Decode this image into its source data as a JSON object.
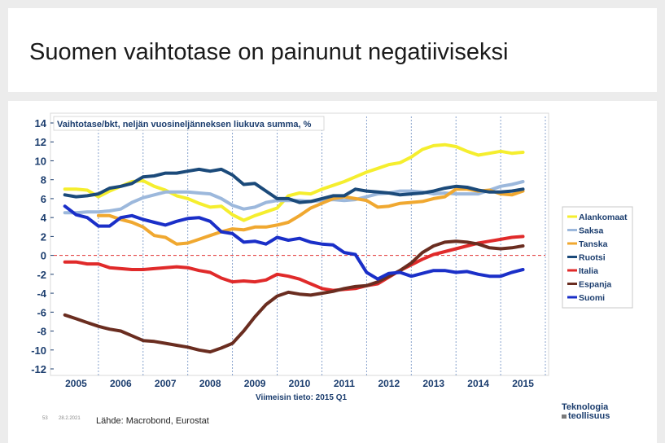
{
  "slide": {
    "title": "Suomen vaihtotase on painunut negatiiviseksi",
    "page_number": "53",
    "date": "28.2.2021",
    "source": "Lähde: Macrobond, Eurostat",
    "logo_line1": "Teknologia",
    "logo_line2": "teollisuus"
  },
  "chart_data": {
    "type": "line",
    "title": "Vaihtotase/bkt, neljän vuosineljänneksen liukuva summa, %",
    "subtitle": "Viimeisin tieto: 2015 Q1",
    "ylim": [
      -12,
      14
    ],
    "yticks": [
      "14",
      "12",
      "10",
      "8",
      "6",
      "4",
      "2",
      "0",
      "-2",
      "-4",
      "-6",
      "-8",
      "-10",
      "-12"
    ],
    "xlim": [
      2004.5,
      2015.5
    ],
    "xticks": [
      "2005",
      "2006",
      "2007",
      "2008",
      "2009",
      "2010",
      "2011",
      "2012",
      "2013",
      "2014",
      "2015"
    ],
    "series": [
      {
        "name": "Alankomaat",
        "color": "#f5ee2e",
        "width": 4,
        "x": [
          2004.75,
          2005.0,
          2005.25,
          2005.5,
          2005.75,
          2006.0,
          2006.25,
          2006.5,
          2006.75,
          2007.0,
          2007.25,
          2007.5,
          2007.75,
          2008.0,
          2008.25,
          2008.5,
          2008.75,
          2009.0,
          2009.25,
          2009.5,
          2009.75,
          2010.0,
          2010.25,
          2010.5,
          2010.75,
          2011.0,
          2011.25,
          2011.5,
          2011.75,
          2012.0,
          2012.25,
          2012.5,
          2012.75,
          2013.0,
          2013.25,
          2013.5,
          2013.75,
          2014.0,
          2014.25,
          2014.5,
          2014.75,
          2015.0
        ],
        "y": [
          7.0,
          7.0,
          6.9,
          6.2,
          6.8,
          7.3,
          7.8,
          7.9,
          7.3,
          6.9,
          6.3,
          6.0,
          5.5,
          5.1,
          5.2,
          4.3,
          3.7,
          4.2,
          4.6,
          5.0,
          6.3,
          6.6,
          6.5,
          7.0,
          7.4,
          7.8,
          8.3,
          8.8,
          9.2,
          9.6,
          9.8,
          10.4,
          11.2,
          11.6,
          11.7,
          11.5,
          11.0,
          10.6,
          10.8,
          11.0,
          10.8,
          10.9
        ]
      },
      {
        "name": "Saksa",
        "color": "#9cb8dc",
        "width": 4,
        "x": [
          2004.75,
          2005.0,
          2005.25,
          2005.5,
          2005.75,
          2006.0,
          2006.25,
          2006.5,
          2006.75,
          2007.0,
          2007.25,
          2007.5,
          2007.75,
          2008.0,
          2008.25,
          2008.5,
          2008.75,
          2009.0,
          2009.25,
          2009.5,
          2009.75,
          2010.0,
          2010.25,
          2010.5,
          2010.75,
          2011.0,
          2011.25,
          2011.5,
          2011.75,
          2012.0,
          2012.25,
          2012.5,
          2012.75,
          2013.0,
          2013.25,
          2013.5,
          2013.75,
          2014.0,
          2014.25,
          2014.5,
          2014.75,
          2015.0
        ],
        "y": [
          4.5,
          4.5,
          4.6,
          4.6,
          4.7,
          4.9,
          5.6,
          6.1,
          6.4,
          6.7,
          6.7,
          6.7,
          6.6,
          6.5,
          6.0,
          5.3,
          4.9,
          5.1,
          5.6,
          5.8,
          5.8,
          5.8,
          5.7,
          5.8,
          5.9,
          5.8,
          5.9,
          6.2,
          6.5,
          6.6,
          6.8,
          6.8,
          6.7,
          6.5,
          6.6,
          6.5,
          6.5,
          6.5,
          6.9,
          7.3,
          7.5,
          7.8
        ]
      },
      {
        "name": "Tanska",
        "color": "#f0a830",
        "width": 4,
        "x": [
          2005.5,
          2005.75,
          2006.0,
          2006.25,
          2006.5,
          2006.75,
          2007.0,
          2007.25,
          2007.5,
          2007.75,
          2008.0,
          2008.25,
          2008.5,
          2008.75,
          2009.0,
          2009.25,
          2009.5,
          2009.75,
          2010.0,
          2010.25,
          2010.5,
          2010.75,
          2011.0,
          2011.25,
          2011.5,
          2011.75,
          2012.0,
          2012.25,
          2012.5,
          2012.75,
          2013.0,
          2013.25,
          2013.5,
          2013.75,
          2014.0,
          2014.25,
          2014.5,
          2014.75,
          2015.0
        ],
        "y": [
          4.2,
          4.2,
          3.8,
          3.5,
          3.0,
          2.1,
          1.9,
          1.2,
          1.3,
          1.7,
          2.1,
          2.5,
          2.8,
          2.7,
          3.0,
          3.0,
          3.2,
          3.5,
          4.2,
          5.0,
          5.5,
          6.0,
          6.2,
          6.0,
          5.8,
          5.1,
          5.2,
          5.5,
          5.6,
          5.7,
          6.0,
          6.2,
          7.0,
          7.0,
          6.8,
          6.9,
          6.5,
          6.4,
          6.8
        ]
      },
      {
        "name": "Ruotsi",
        "color": "#1b4a7a",
        "width": 4,
        "x": [
          2004.75,
          2005.0,
          2005.25,
          2005.5,
          2005.75,
          2006.0,
          2006.25,
          2006.5,
          2006.75,
          2007.0,
          2007.25,
          2007.5,
          2007.75,
          2008.0,
          2008.25,
          2008.5,
          2008.75,
          2009.0,
          2009.25,
          2009.5,
          2009.75,
          2010.0,
          2010.25,
          2010.5,
          2010.75,
          2011.0,
          2011.25,
          2011.5,
          2011.75,
          2012.0,
          2012.25,
          2012.5,
          2012.75,
          2013.0,
          2013.25,
          2013.5,
          2013.75,
          2014.0,
          2014.25,
          2014.5,
          2014.75,
          2015.0
        ],
        "y": [
          6.4,
          6.2,
          6.3,
          6.5,
          7.1,
          7.3,
          7.6,
          8.3,
          8.4,
          8.7,
          8.7,
          8.9,
          9.1,
          8.9,
          9.1,
          8.5,
          7.5,
          7.6,
          6.8,
          6.0,
          6.0,
          5.6,
          5.7,
          6.0,
          6.3,
          6.3,
          7.0,
          6.8,
          6.7,
          6.6,
          6.4,
          6.5,
          6.6,
          6.8,
          7.1,
          7.3,
          7.2,
          6.9,
          6.7,
          6.7,
          6.8,
          7.0
        ]
      },
      {
        "name": "Italia",
        "color": "#e02a2a",
        "width": 4,
        "x": [
          2004.75,
          2005.0,
          2005.25,
          2005.5,
          2005.75,
          2006.0,
          2006.25,
          2006.5,
          2006.75,
          2007.0,
          2007.25,
          2007.5,
          2007.75,
          2008.0,
          2008.25,
          2008.5,
          2008.75,
          2009.0,
          2009.25,
          2009.5,
          2009.75,
          2010.0,
          2010.25,
          2010.5,
          2010.75,
          2011.0,
          2011.25,
          2011.5,
          2011.75,
          2012.0,
          2012.25,
          2012.5,
          2012.75,
          2013.0,
          2013.25,
          2013.5,
          2013.75,
          2014.0,
          2014.25,
          2014.5,
          2014.75,
          2015.0
        ],
        "y": [
          -0.7,
          -0.7,
          -0.9,
          -0.9,
          -1.3,
          -1.4,
          -1.5,
          -1.5,
          -1.4,
          -1.3,
          -1.2,
          -1.3,
          -1.6,
          -1.8,
          -2.4,
          -2.8,
          -2.7,
          -2.8,
          -2.6,
          -2.0,
          -2.2,
          -2.5,
          -3.0,
          -3.5,
          -3.7,
          -3.6,
          -3.5,
          -3.2,
          -3.0,
          -2.3,
          -1.6,
          -1.0,
          -0.4,
          0.1,
          0.4,
          0.7,
          1.0,
          1.3,
          1.5,
          1.7,
          1.9,
          2.0
        ]
      },
      {
        "name": "Espanja",
        "color": "#6a2d20",
        "width": 4,
        "x": [
          2004.75,
          2005.0,
          2005.25,
          2005.5,
          2005.75,
          2006.0,
          2006.25,
          2006.5,
          2006.75,
          2007.0,
          2007.25,
          2007.5,
          2007.75,
          2008.0,
          2008.25,
          2008.5,
          2008.75,
          2009.0,
          2009.25,
          2009.5,
          2009.75,
          2010.0,
          2010.25,
          2010.5,
          2010.75,
          2011.0,
          2011.25,
          2011.5,
          2011.75,
          2012.0,
          2012.25,
          2012.5,
          2012.75,
          2013.0,
          2013.25,
          2013.5,
          2013.75,
          2014.0,
          2014.25,
          2014.5,
          2014.75,
          2015.0
        ],
        "y": [
          -6.3,
          -6.7,
          -7.1,
          -7.5,
          -7.8,
          -8.0,
          -8.5,
          -9.0,
          -9.1,
          -9.3,
          -9.5,
          -9.7,
          -10.0,
          -10.2,
          -9.8,
          -9.3,
          -8.0,
          -6.5,
          -5.2,
          -4.3,
          -3.9,
          -4.1,
          -4.2,
          -4.0,
          -3.8,
          -3.5,
          -3.3,
          -3.2,
          -2.8,
          -2.2,
          -1.6,
          -0.8,
          0.3,
          1.0,
          1.4,
          1.5,
          1.4,
          1.2,
          0.8,
          0.7,
          0.8,
          1.0
        ]
      },
      {
        "name": "Suomi",
        "color": "#1a2fc8",
        "width": 4,
        "x": [
          2004.75,
          2005.0,
          2005.25,
          2005.5,
          2005.75,
          2006.0,
          2006.25,
          2006.5,
          2006.75,
          2007.0,
          2007.25,
          2007.5,
          2007.75,
          2008.0,
          2008.25,
          2008.5,
          2008.75,
          2009.0,
          2009.25,
          2009.5,
          2009.75,
          2010.0,
          2010.25,
          2010.5,
          2010.75,
          2011.0,
          2011.25,
          2011.5,
          2011.75,
          2012.0,
          2012.25,
          2012.5,
          2012.75,
          2013.0,
          2013.25,
          2013.5,
          2013.75,
          2014.0,
          2014.25,
          2014.5,
          2014.75,
          2015.0
        ],
        "y": [
          5.2,
          4.3,
          4.0,
          3.1,
          3.1,
          4.0,
          4.2,
          3.8,
          3.5,
          3.2,
          3.6,
          3.9,
          4.0,
          3.6,
          2.5,
          2.3,
          1.4,
          1.5,
          1.2,
          1.9,
          1.6,
          1.8,
          1.4,
          1.2,
          1.1,
          0.3,
          0.1,
          -1.8,
          -2.5,
          -1.9,
          -1.8,
          -2.2,
          -1.9,
          -1.6,
          -1.6,
          -1.8,
          -1.7,
          -2.0,
          -2.2,
          -2.2,
          -1.8,
          -1.5
        ]
      }
    ]
  }
}
